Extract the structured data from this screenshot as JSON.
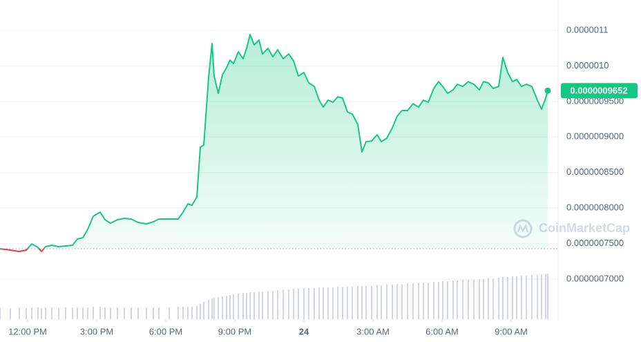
{
  "chart_data": {
    "type": "line",
    "x": [
      10.8,
      11.25,
      11.64,
      11.94,
      12.18,
      12.45,
      12.6,
      12.78,
      13.05,
      13.35,
      13.65,
      13.95,
      14.16,
      14.4,
      14.61,
      14.85,
      15.15,
      15.36,
      15.6,
      15.9,
      16.2,
      16.5,
      16.8,
      17.16,
      17.46,
      17.7,
      18.15,
      18.54,
      18.75,
      18.96,
      19.14,
      19.35,
      19.5,
      19.65,
      19.86,
      20.01,
      20.1,
      20.28,
      20.46,
      20.64,
      20.79,
      20.94,
      21.15,
      21.36,
      21.51,
      21.66,
      21.84,
      22.05,
      22.2,
      22.44,
      22.65,
      22.86,
      23.1,
      23.34,
      23.55,
      23.76,
      24.0,
      24.21,
      24.45,
      24.66,
      24.84,
      25.05,
      25.26,
      25.47,
      25.68,
      25.89,
      26.1,
      26.34,
      26.52,
      26.7,
      26.94,
      27.18,
      27.36,
      27.6,
      27.84,
      28.05,
      28.26,
      28.5,
      28.74,
      28.98,
      29.19,
      29.4,
      29.64,
      29.85,
      30.03,
      30.24,
      30.48,
      30.66,
      30.9,
      31.14,
      31.38,
      31.62,
      31.8,
      32.01,
      32.22,
      32.46,
      32.64,
      32.85,
      33.06,
      33.24,
      33.45,
      33.66,
      33.9,
      34.14,
      34.32,
      34.5,
      34.59
    ],
    "series": [
      {
        "color": "#16c784",
        "down_color": "#ea3943",
        "values": [
          7.428e-07,
          7.408e-07,
          7.389e-07,
          7.408e-07,
          7.496e-07,
          7.447e-07,
          7.389e-07,
          7.457e-07,
          7.476e-07,
          7.457e-07,
          7.467e-07,
          7.476e-07,
          7.564e-07,
          7.583e-07,
          7.7e-07,
          7.885e-07,
          7.943e-07,
          7.836e-07,
          7.787e-07,
          7.836e-07,
          7.856e-07,
          7.846e-07,
          7.797e-07,
          7.778e-07,
          7.807e-07,
          7.846e-07,
          7.846e-07,
          7.846e-07,
          7.943e-07,
          8.06e-07,
          8.04e-07,
          8.157e-07,
          8.857e-07,
          8.886e-07,
          9.839e-07,
          1.0315e-06,
          9.858e-07,
          9.615e-07,
          9.878e-07,
          9.975e-07,
          1.0082e-06,
          1.0033e-06,
          1.0199e-06,
          1.0102e-06,
          1.0247e-06,
          1.0442e-06,
          1.0296e-06,
          1.0364e-06,
          1.0169e-06,
          1.0247e-06,
          1.013e-06,
          1.0228e-06,
          1.0102e-06,
          1.0169e-06,
          1.0072e-06,
          9.858e-07,
          9.907e-07,
          9.761e-07,
          9.712e-07,
          9.518e-07,
          9.421e-07,
          9.518e-07,
          9.489e-07,
          9.566e-07,
          9.547e-07,
          9.353e-07,
          9.324e-07,
          9.178e-07,
          8.789e-07,
          8.935e-07,
          8.944e-07,
          9.032e-07,
          8.935e-07,
          8.983e-07,
          9.129e-07,
          9.294e-07,
          9.372e-07,
          9.372e-07,
          9.469e-07,
          9.421e-07,
          9.518e-07,
          9.489e-07,
          9.683e-07,
          9.78e-07,
          9.712e-07,
          9.615e-07,
          9.664e-07,
          9.742e-07,
          9.712e-07,
          9.78e-07,
          9.742e-07,
          9.664e-07,
          9.78e-07,
          9.761e-07,
          9.683e-07,
          9.712e-07,
          1.0121e-06,
          9.907e-07,
          9.78e-07,
          9.81e-07,
          9.712e-07,
          9.742e-07,
          9.712e-07,
          9.518e-07,
          9.392e-07,
          9.547e-07,
          9.652e-07
        ]
      }
    ],
    "baseline": 7.428e-07,
    "current_price": {
      "value": 9.652e-07,
      "label": "0.0000009652"
    },
    "volume": [
      17,
      16,
      17,
      16,
      17,
      17,
      16,
      17,
      17,
      16,
      17,
      17,
      17,
      17,
      17,
      18,
      18,
      17,
      17,
      17,
      17,
      17,
      17,
      17,
      17,
      17,
      17,
      18,
      18,
      18,
      18,
      19,
      22,
      25,
      28,
      30,
      31,
      32,
      33,
      34,
      35,
      36,
      37,
      38,
      38,
      39,
      39,
      40,
      40,
      41,
      41,
      42,
      43,
      43,
      44,
      44,
      45,
      45,
      45,
      46,
      46,
      46,
      46,
      47,
      47,
      47,
      47,
      48,
      48,
      48,
      48,
      49,
      49,
      50,
      50,
      51,
      51,
      52,
      52,
      53,
      53,
      53,
      54,
      54,
      55,
      55,
      56,
      56,
      57,
      57,
      57,
      58,
      58,
      59,
      59,
      60,
      61,
      61,
      62,
      62,
      63,
      63,
      64,
      64,
      65,
      65,
      66
    ],
    "volume_color": "#d3d6e2",
    "volume_lim": [
      0,
      100
    ],
    "xlim": [
      10.8,
      35.04
    ],
    "ylim": [
      6.436e-07,
      1.0928e-06
    ],
    "xticks": [
      {
        "value": 12,
        "label": "12:00 PM"
      },
      {
        "value": 15,
        "label": "3:00 PM"
      },
      {
        "value": 18,
        "label": "6:00 PM"
      },
      {
        "value": 21,
        "label": "9:00 PM"
      },
      24,
      {
        "value": 27,
        "label": "3:00 AM"
      },
      {
        "value": 30,
        "label": "6:00 AM"
      },
      {
        "value": 33,
        "label": "9:00 AM"
      }
    ],
    "yticks": [
      {
        "value": 1.05e-06,
        "label": "0.0000011"
      },
      {
        "value": 1e-06,
        "label": "0.0000010"
      },
      {
        "value": 9.5e-07,
        "label": "0.0000009500"
      },
      {
        "value": 9e-07,
        "label": "0.0000009000"
      },
      {
        "value": 8.5e-07,
        "label": "0.0000008500"
      },
      {
        "value": 8e-07,
        "label": "0.0000008000"
      },
      {
        "value": 7.5e-07,
        "label": "0.0000007500"
      },
      {
        "value": 7e-07,
        "label": "0.0000007000"
      }
    ],
    "grid": true,
    "watermark": "CoinMarketCap"
  }
}
